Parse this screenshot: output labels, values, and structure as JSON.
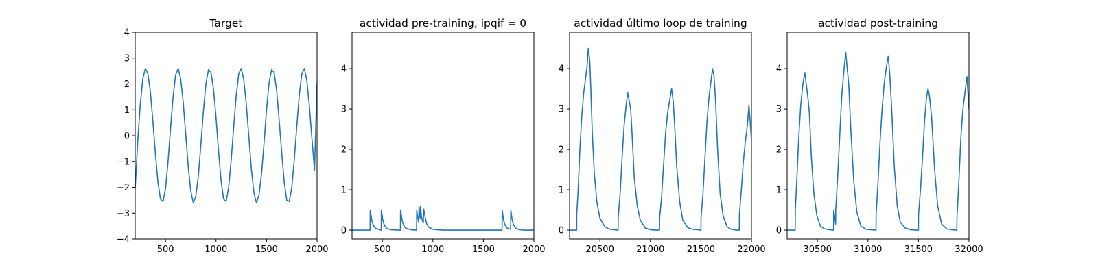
{
  "chart_data": [
    {
      "type": "line",
      "title": "Target",
      "xlim": [
        200,
        2000
      ],
      "ylim": [
        -4,
        4
      ],
      "xticks": [
        500,
        1000,
        1500,
        2000
      ],
      "yticks": [
        -4,
        -3,
        -2,
        -1,
        0,
        1,
        2,
        3,
        4
      ],
      "grid": false,
      "color": "#1f77b4",
      "series": [
        {
          "x": [
            200,
            225,
            250,
            275,
            300,
            325,
            350,
            375,
            400,
            425,
            450,
            475,
            500,
            525,
            550,
            575,
            600,
            625,
            650,
            675,
            700,
            725,
            750,
            775,
            800,
            825,
            850,
            875,
            900,
            925,
            950,
            975,
            1000,
            1025,
            1050,
            1075,
            1100,
            1125,
            1150,
            1175,
            1200,
            1225,
            1250,
            1275,
            1300,
            1325,
            1350,
            1375,
            1400,
            1425,
            1450,
            1475,
            1500,
            1525,
            1550,
            1575,
            1600,
            1625,
            1650,
            1675,
            1700,
            1725,
            1750,
            1775,
            1800,
            1825,
            1850,
            1875,
            1900,
            1925,
            1950,
            1975,
            2000
          ],
          "y": [
            -2.05,
            -0.2,
            1.2,
            2.2,
            2.6,
            2.4,
            1.7,
            0.55,
            -0.7,
            -1.8,
            -2.45,
            -2.55,
            -2.05,
            -1.0,
            0.3,
            1.5,
            2.35,
            2.6,
            2.2,
            1.3,
            0.05,
            -1.2,
            -2.15,
            -2.6,
            -2.35,
            -1.55,
            -0.35,
            0.95,
            2.0,
            2.55,
            2.45,
            1.8,
            0.7,
            -0.6,
            -1.75,
            -2.45,
            -2.55,
            -2.0,
            -0.95,
            0.35,
            1.55,
            2.4,
            2.6,
            2.15,
            1.2,
            -0.05,
            -1.3,
            -2.2,
            -2.6,
            -2.3,
            -1.5,
            -0.3,
            1.0,
            2.05,
            2.55,
            2.45,
            1.75,
            0.6,
            -0.65,
            -1.8,
            -2.5,
            -2.55,
            -2.0,
            -0.9,
            0.4,
            1.6,
            2.4,
            2.6,
            2.1,
            1.1,
            -0.15,
            -1.35,
            2.05
          ]
        }
      ]
    },
    {
      "type": "line",
      "title": "actividad pre-training, ipqif = 0",
      "xlim": [
        200,
        2000
      ],
      "ylim": [
        -0.22,
        4.9
      ],
      "xticks": [
        500,
        1000,
        1500,
        2000
      ],
      "yticks": [
        0,
        1,
        2,
        3,
        4
      ],
      "grid": false,
      "color": "#1f77b4",
      "series": [
        {
          "x": [
            200,
            379,
            380,
            395,
            410,
            430,
            470,
            489,
            490,
            505,
            520,
            540,
            580,
            679,
            680,
            695,
            710,
            730,
            780,
            839,
            840,
            850,
            860,
            863,
            870,
            875,
            878,
            885,
            895,
            905,
            910,
            925,
            940,
            960,
            1000,
            1040,
            1100,
            1685,
            1686,
            1700,
            1715,
            1735,
            1770,
            1771,
            1785,
            1800,
            1820,
            1860,
            1900,
            2000
          ],
          "y": [
            0,
            0,
            0.5,
            0.25,
            0.12,
            0.05,
            0.01,
            0,
            0.5,
            0.25,
            0.12,
            0.05,
            0.01,
            0,
            0.5,
            0.25,
            0.12,
            0.05,
            0.01,
            0,
            0.5,
            0.3,
            0.2,
            0.58,
            0.35,
            0.3,
            0.6,
            0.38,
            0.25,
            0.18,
            0.52,
            0.3,
            0.15,
            0.07,
            0.02,
            0.01,
            0,
            0,
            0.5,
            0.25,
            0.12,
            0.05,
            0.02,
            0.5,
            0.25,
            0.12,
            0.05,
            0.01,
            0,
            0
          ]
        }
      ]
    },
    {
      "type": "line",
      "title": "actividad último loop de training",
      "xlim": [
        20200,
        22000
      ],
      "ylim": [
        -0.22,
        4.9
      ],
      "xticks": [
        20500,
        21000,
        21500,
        22000
      ],
      "yticks": [
        0,
        1,
        2,
        3,
        4
      ],
      "grid": false,
      "color": "#1f77b4",
      "series": [
        {
          "x": [
            20200,
            20270,
            20271,
            20285,
            20300,
            20320,
            20340,
            20360,
            20375,
            20385,
            20400,
            20410,
            20425,
            20445,
            20470,
            20500,
            20550,
            20600,
            20640,
            20680,
            20681,
            20700,
            20720,
            20740,
            20760,
            20775,
            20790,
            20805,
            20820,
            20840,
            20870,
            20900,
            20950,
            21000,
            21060,
            21090,
            21091,
            21110,
            21130,
            21150,
            21170,
            21190,
            21210,
            21225,
            21240,
            21260,
            21290,
            21320,
            21370,
            21420,
            21470,
            21500,
            21501,
            21520,
            21540,
            21560,
            21580,
            21600,
            21615,
            21630,
            21645,
            21665,
            21690,
            21720,
            21760,
            21800,
            21850,
            21880,
            21881,
            21900,
            21920,
            21940,
            21960,
            21975,
            21990,
            22000
          ],
          "y": [
            0,
            0,
            0.4,
            1.0,
            1.9,
            2.8,
            3.4,
            3.8,
            4.1,
            4.5,
            4.2,
            3.5,
            2.4,
            1.4,
            0.7,
            0.3,
            0.08,
            0.02,
            0.01,
            0,
            0.3,
            0.9,
            1.8,
            2.6,
            3.1,
            3.4,
            3.2,
            3.0,
            2.3,
            1.3,
            0.6,
            0.25,
            0.05,
            0.01,
            0.0,
            0,
            0.3,
            0.8,
            1.6,
            2.4,
            2.9,
            3.2,
            3.5,
            3.2,
            2.6,
            1.6,
            0.7,
            0.25,
            0.06,
            0.02,
            0.01,
            0,
            0.3,
            0.9,
            1.8,
            2.7,
            3.3,
            3.7,
            4.0,
            3.8,
            3.2,
            2.0,
            0.9,
            0.35,
            0.08,
            0.02,
            0.0,
            0,
            0.4,
            1.0,
            1.7,
            2.2,
            2.6,
            3.1,
            2.6,
            2.2
          ]
        }
      ]
    },
    {
      "type": "line",
      "title": "actividad post-training",
      "xlim": [
        30200,
        32000
      ],
      "ylim": [
        -0.22,
        4.9
      ],
      "xticks": [
        30500,
        31000,
        31500,
        32000
      ],
      "yticks": [
        0,
        1,
        2,
        3,
        4
      ],
      "grid": false,
      "color": "#1f77b4",
      "series": [
        {
          "x": [
            30200,
            30280,
            30281,
            30295,
            30315,
            30335,
            30355,
            30375,
            30390,
            30405,
            30420,
            30440,
            30465,
            30495,
            30530,
            30570,
            30620,
            30660,
            30661,
            30672,
            30680,
            30681,
            30700,
            30720,
            30740,
            30760,
            30780,
            30795,
            30810,
            30830,
            30860,
            30890,
            30930,
            30980,
            31030,
            31080,
            31081,
            31100,
            31120,
            31140,
            31160,
            31180,
            31200,
            31215,
            31235,
            31260,
            31290,
            31320,
            31370,
            31420,
            31480,
            31500,
            31501,
            31520,
            31540,
            31560,
            31580,
            31595,
            31610,
            31630,
            31660,
            31690,
            31730,
            31780,
            31830,
            31880,
            31881,
            31900,
            31920,
            31940,
            31960,
            31980,
            32000
          ],
          "y": [
            0,
            0,
            0.5,
            1.2,
            2.3,
            3.1,
            3.6,
            3.9,
            3.6,
            3.3,
            2.9,
            1.8,
            0.9,
            0.35,
            0.1,
            0.03,
            0.01,
            0,
            0.5,
            0.3,
            0.15,
            0.5,
            1.3,
            2.3,
            3.3,
            3.9,
            4.4,
            4.0,
            3.6,
            2.5,
            1.2,
            0.45,
            0.1,
            0.02,
            0.01,
            0,
            0.4,
            1.2,
            2.2,
            3.0,
            3.6,
            4.0,
            4.3,
            3.9,
            3.0,
            1.6,
            0.6,
            0.2,
            0.05,
            0.01,
            0,
            0,
            0.4,
            1.0,
            1.8,
            2.7,
            3.3,
            3.5,
            3.3,
            2.8,
            1.5,
            0.6,
            0.15,
            0.03,
            0.01,
            0,
            0.3,
            1.2,
            2.3,
            3.0,
            3.4,
            3.8,
            3.0
          ]
        }
      ]
    }
  ]
}
